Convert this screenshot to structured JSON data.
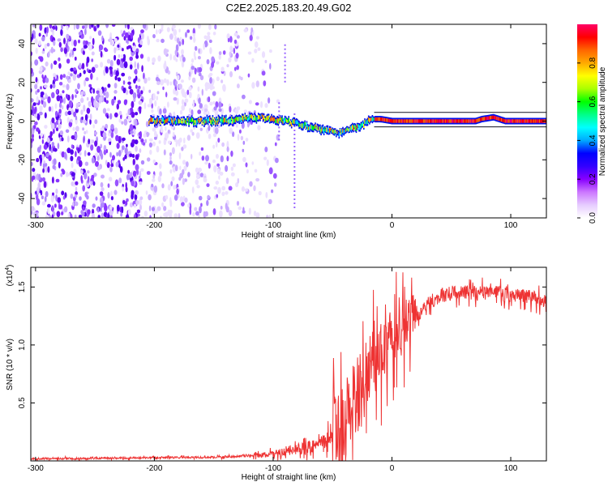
{
  "title": "C2E2.2025.183.20.49.G02",
  "chart_data": [
    {
      "type": "heatmap",
      "title": "C2E2.2025.183.20.49.G02",
      "xlabel": "Height of straight line (km)",
      "ylabel": "Frequency (Hz)",
      "xlim": [
        -304,
        130
      ],
      "ylim": [
        -50,
        50
      ],
      "x_ticks": [
        -300,
        -200,
        -100,
        0,
        100
      ],
      "y_ticks": [
        -40,
        -20,
        0,
        20,
        40
      ],
      "grid": false,
      "colorbar": {
        "label": "Normalized spectral amplitude",
        "range": [
          0,
          1
        ],
        "ticks": [
          0.0,
          0.2,
          0.4,
          0.6,
          0.8
        ],
        "colormap": "rainbow",
        "stops": [
          "#ffffff",
          "#e6ccff",
          "#cc77ff",
          "#8800ff",
          "#3300ff",
          "#0000ff",
          "#00aaff",
          "#00ffff",
          "#00ff88",
          "#00ff00",
          "#aaff00",
          "#ffff00",
          "#ffaa00",
          "#ff6600",
          "#ff0000",
          "#ff0066"
        ]
      },
      "ridge_x": [
        -205,
        -190,
        -170,
        -150,
        -130,
        -110,
        -90,
        -70,
        -55,
        -45,
        -35,
        -25,
        -18,
        -10,
        0,
        20,
        40,
        60,
        70,
        75,
        85,
        95,
        110,
        130
      ],
      "ridge_y": [
        0,
        0,
        0,
        0,
        1,
        2,
        0,
        -3,
        -5,
        -6,
        -4,
        -2,
        1,
        1,
        0,
        0,
        0,
        0,
        0,
        1,
        2,
        0,
        0,
        0
      ],
      "noise_region_x": [
        -304,
        -150
      ],
      "fade_region_x": [
        -150,
        -88
      ]
    },
    {
      "type": "line",
      "xlabel": "Height of straight line (km)",
      "ylabel": "SNR (10 * v/v)",
      "y_multiplier": "(x10",
      "y_multiplier_exp": "4",
      "xlim": [
        -304,
        130
      ],
      "ylim": [
        0,
        1.67
      ],
      "x_ticks": [
        -300,
        -200,
        -100,
        0,
        100
      ],
      "y_ticks": [
        0.5,
        1.0,
        1.5
      ],
      "y_tick_labels": [
        "0.5",
        "1.0",
        "1.5"
      ],
      "grid": false,
      "series": [
        {
          "color": "#ee3333",
          "x": [
            -304,
            -280,
            -260,
            -240,
            -220,
            -200,
            -180,
            -160,
            -140,
            -130,
            -120,
            -110,
            -100,
            -90,
            -80,
            -70,
            -60,
            -50,
            -45,
            -40,
            -35,
            -30,
            -25,
            -20,
            -15,
            -10,
            -5,
            0,
            5,
            10,
            15,
            20,
            25,
            30,
            40,
            50,
            60,
            70,
            80,
            90,
            100,
            110,
            120,
            130
          ],
          "y": [
            0.02,
            0.02,
            0.02,
            0.025,
            0.025,
            0.03,
            0.03,
            0.03,
            0.035,
            0.04,
            0.045,
            0.05,
            0.06,
            0.08,
            0.1,
            0.12,
            0.15,
            0.2,
            0.25,
            0.35,
            0.45,
            0.55,
            0.65,
            0.75,
            0.85,
            0.92,
            1.0,
            1.05,
            1.1,
            1.15,
            1.2,
            1.25,
            1.3,
            1.35,
            1.42,
            1.45,
            1.45,
            1.45,
            1.45,
            1.45,
            1.42,
            1.42,
            1.42,
            1.38
          ]
        }
      ]
    }
  ]
}
